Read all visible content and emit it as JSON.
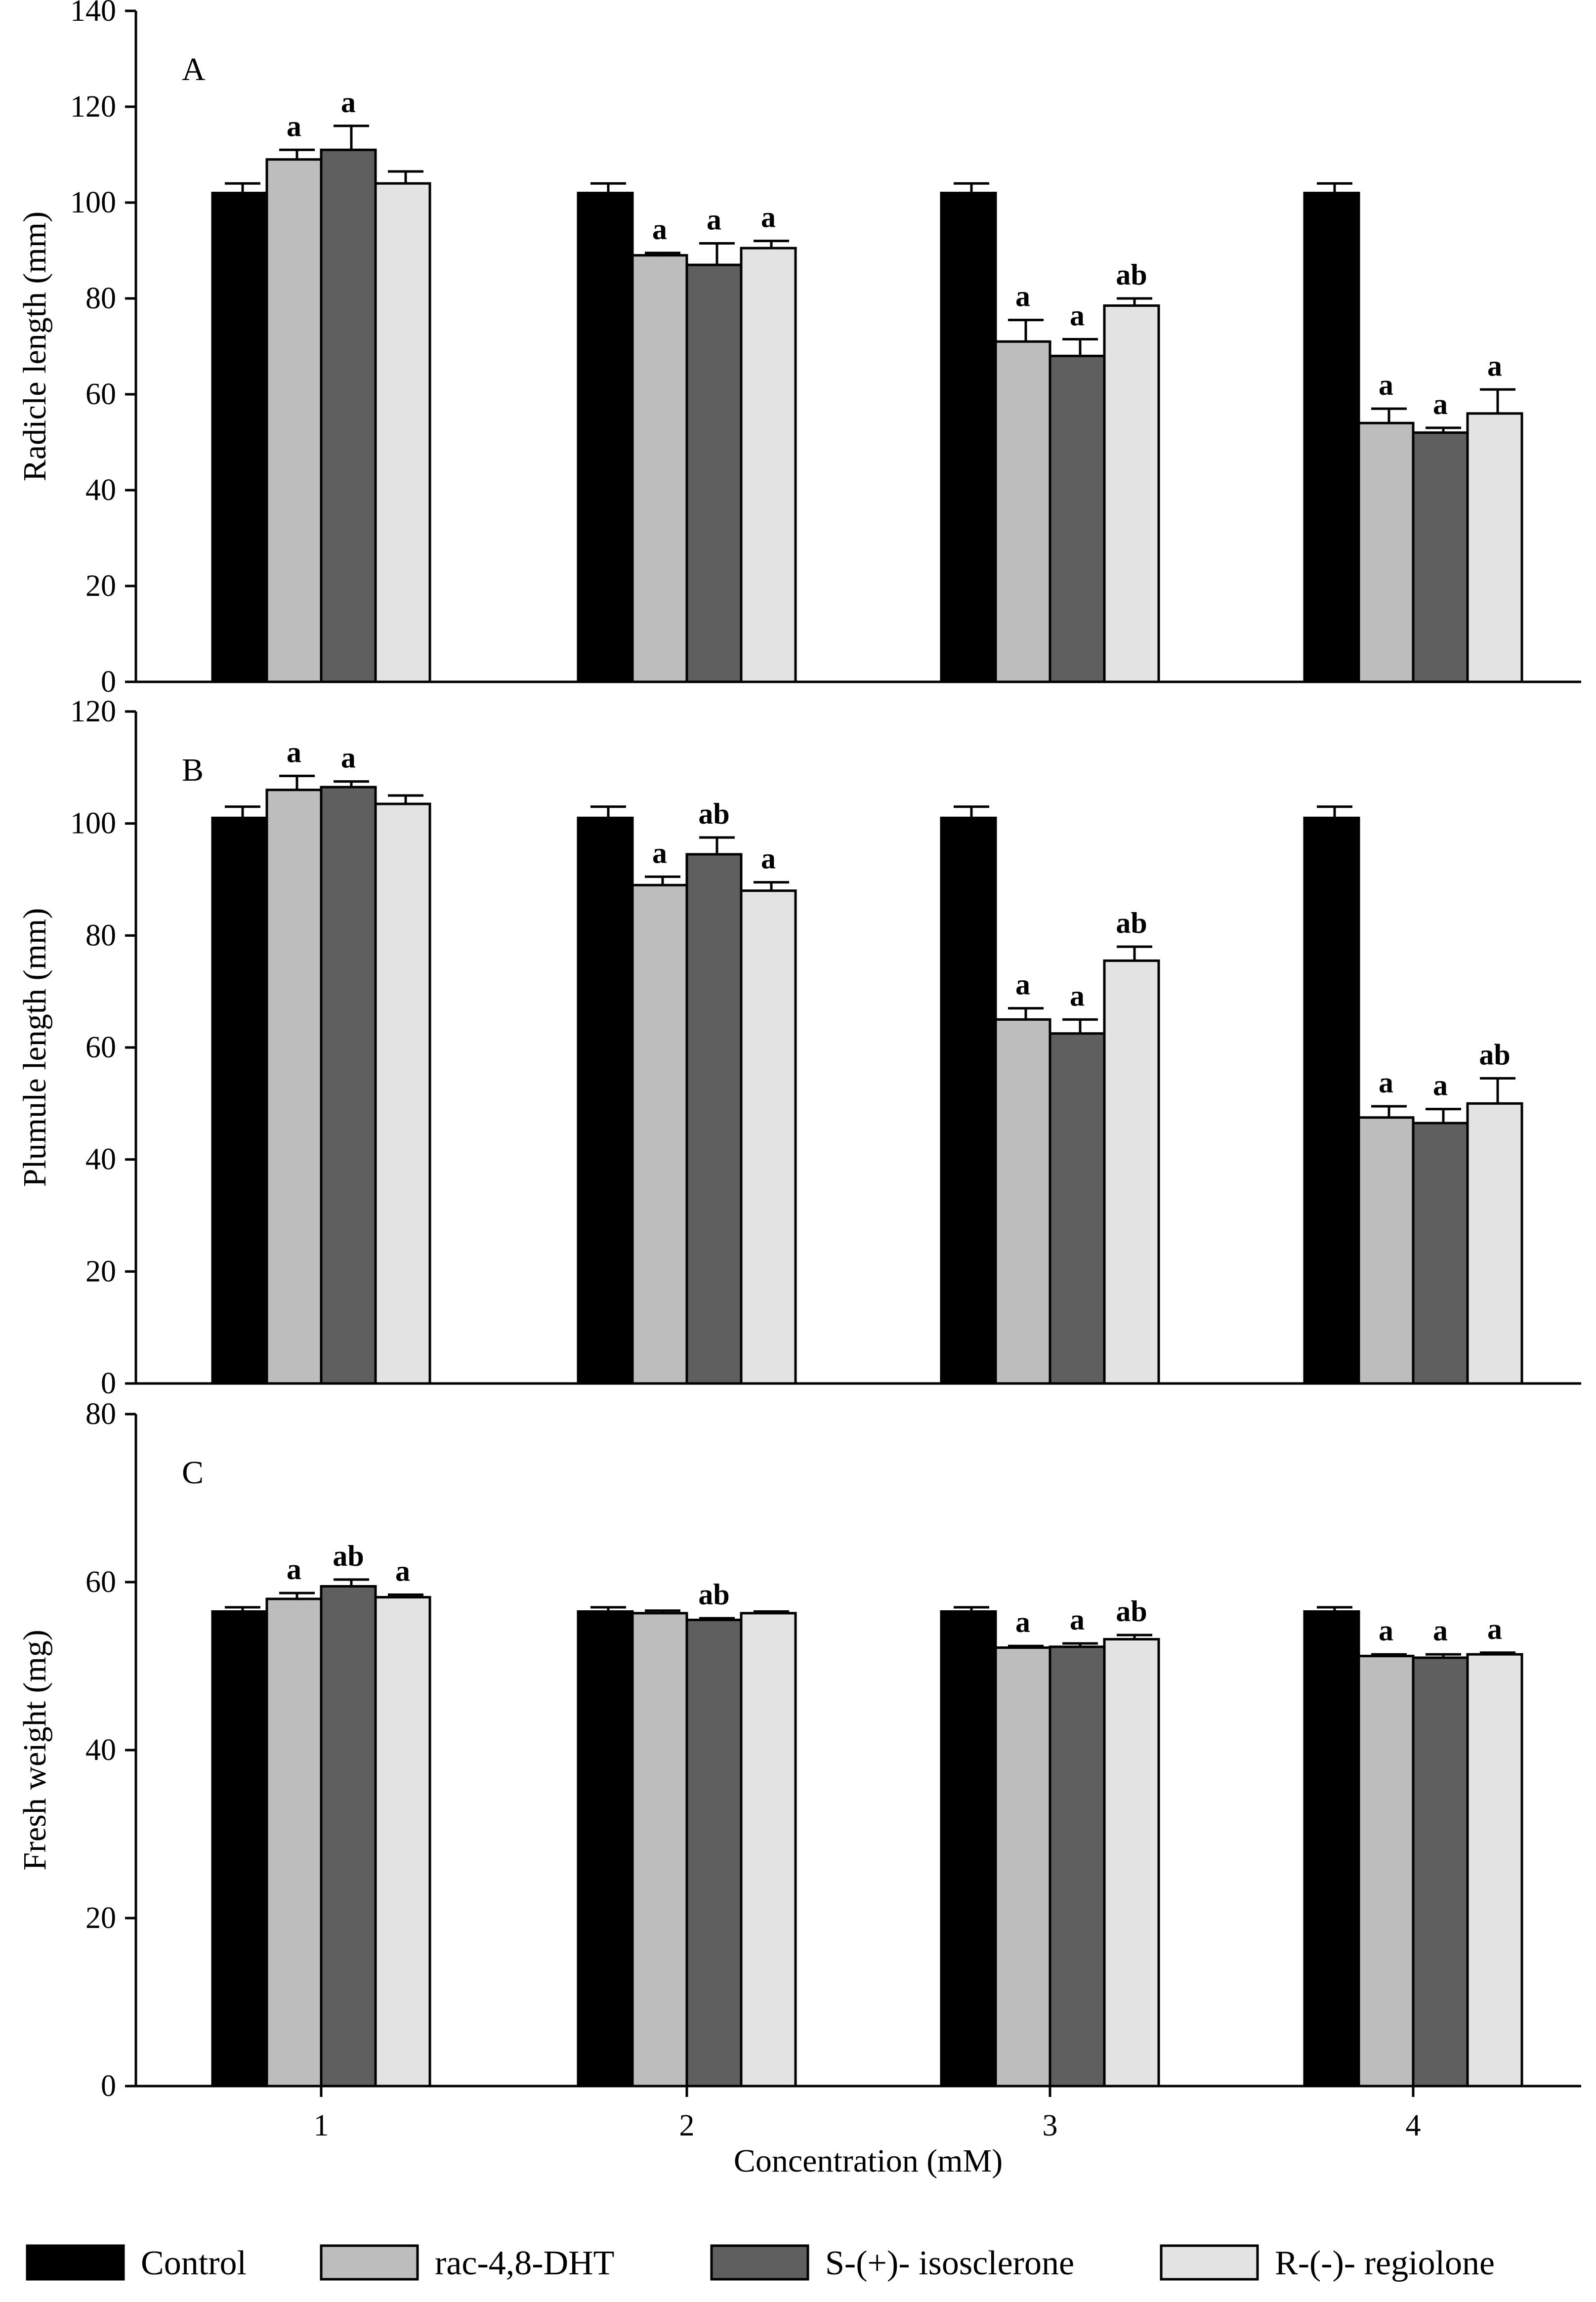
{
  "chart_data": [
    {
      "type": "bar",
      "panel_label": "A",
      "ylabel": "Radicle length (mm)",
      "xlabel": "",
      "ylim": [
        0,
        140
      ],
      "yticks": [
        0,
        20,
        40,
        60,
        80,
        100,
        120,
        140
      ],
      "categories": [
        "1",
        "2",
        "3",
        "4"
      ],
      "series": [
        {
          "name": "Control",
          "values": [
            102,
            102,
            102,
            102
          ],
          "errors": [
            2,
            2,
            2,
            2
          ],
          "labels": [
            "",
            "",
            "",
            ""
          ]
        },
        {
          "name": "rac-4,8-DHT",
          "values": [
            109,
            89,
            71,
            54
          ],
          "errors": [
            2,
            0.5,
            4.5,
            3
          ],
          "labels": [
            "a",
            "a",
            "a",
            "a"
          ]
        },
        {
          "name": "S-(+)- isosclerone",
          "values": [
            111,
            87,
            68,
            52
          ],
          "errors": [
            5,
            4.5,
            3.5,
            1
          ],
          "labels": [
            "a",
            "a",
            "a",
            "a"
          ]
        },
        {
          "name": "R-(-)- regiolone",
          "values": [
            104,
            90.5,
            78.5,
            56
          ],
          "errors": [
            2.5,
            1.5,
            1.5,
            5
          ],
          "labels": [
            "",
            "a",
            "ab",
            "a"
          ]
        }
      ]
    },
    {
      "type": "bar",
      "panel_label": "B",
      "ylabel": "Plumule length (mm)",
      "xlabel": "",
      "ylim": [
        0,
        120
      ],
      "yticks": [
        0,
        20,
        40,
        60,
        80,
        100,
        120
      ],
      "categories": [
        "1",
        "2",
        "3",
        "4"
      ],
      "series": [
        {
          "name": "Control",
          "values": [
            101,
            101,
            101,
            101
          ],
          "errors": [
            2,
            2,
            2,
            2
          ],
          "labels": [
            "",
            "",
            "",
            ""
          ]
        },
        {
          "name": "rac-4,8-DHT",
          "values": [
            106,
            89,
            65,
            47.5
          ],
          "errors": [
            2.5,
            1.5,
            2,
            2
          ],
          "labels": [
            "a",
            "a",
            "a",
            "a"
          ]
        },
        {
          "name": "S-(+)- isosclerone",
          "values": [
            106.5,
            94.5,
            62.5,
            46.5
          ],
          "errors": [
            1,
            3,
            2.5,
            2.5
          ],
          "labels": [
            "a",
            "ab",
            "a",
            "a"
          ]
        },
        {
          "name": "R-(-)- regiolone",
          "values": [
            103.5,
            88,
            75.5,
            50
          ],
          "errors": [
            1.5,
            1.5,
            2.5,
            4.5
          ],
          "labels": [
            "",
            "a",
            "ab",
            "ab"
          ]
        }
      ]
    },
    {
      "type": "bar",
      "panel_label": "C",
      "ylabel": "Fresh weight (mg)",
      "xlabel": "Concentration (mM)",
      "ylim": [
        0,
        80
      ],
      "yticks": [
        0,
        20,
        40,
        60,
        80
      ],
      "categories": [
        "1",
        "2",
        "3",
        "4"
      ],
      "series": [
        {
          "name": "Control",
          "values": [
            56.5,
            56.5,
            56.5,
            56.5
          ],
          "errors": [
            0.5,
            0.5,
            0.5,
            0.5
          ],
          "labels": [
            "",
            "",
            "",
            ""
          ]
        },
        {
          "name": "rac-4,8-DHT",
          "values": [
            58,
            56.3,
            52.2,
            51.2
          ],
          "errors": [
            0.7,
            0.3,
            0.2,
            0.2
          ],
          "labels": [
            "a",
            "",
            "a",
            "a"
          ]
        },
        {
          "name": "S-(+)- isosclerone",
          "values": [
            59.5,
            55.5,
            52.3,
            51
          ],
          "errors": [
            0.8,
            0.2,
            0.4,
            0.4
          ],
          "labels": [
            "ab",
            "ab",
            "a",
            "a"
          ]
        },
        {
          "name": "R-(-)- regiolone",
          "values": [
            58.2,
            56.3,
            53.2,
            51.4
          ],
          "errors": [
            0.3,
            0.2,
            0.5,
            0.2
          ],
          "labels": [
            "a",
            "",
            "ab",
            "a"
          ]
        }
      ]
    }
  ],
  "legend": {
    "position": "bottom",
    "items": [
      {
        "label": "Control",
        "color": "#000000"
      },
      {
        "label": "rac-4,8-DHT",
        "color": "#bdbdbd"
      },
      {
        "label": "S-(+)- isosclerone",
        "color": "#5f5f5f"
      },
      {
        "label": "R-(-)- regiolone",
        "color": "#e3e3e3"
      }
    ]
  },
  "colors": {
    "Control": "#000000",
    "rac-4,8-DHT": "#bdbdbd",
    "S-(+)- isosclerone": "#5f5f5f",
    "R-(-)- regiolone": "#e3e3e3",
    "axis": "#000000"
  },
  "grid": false
}
